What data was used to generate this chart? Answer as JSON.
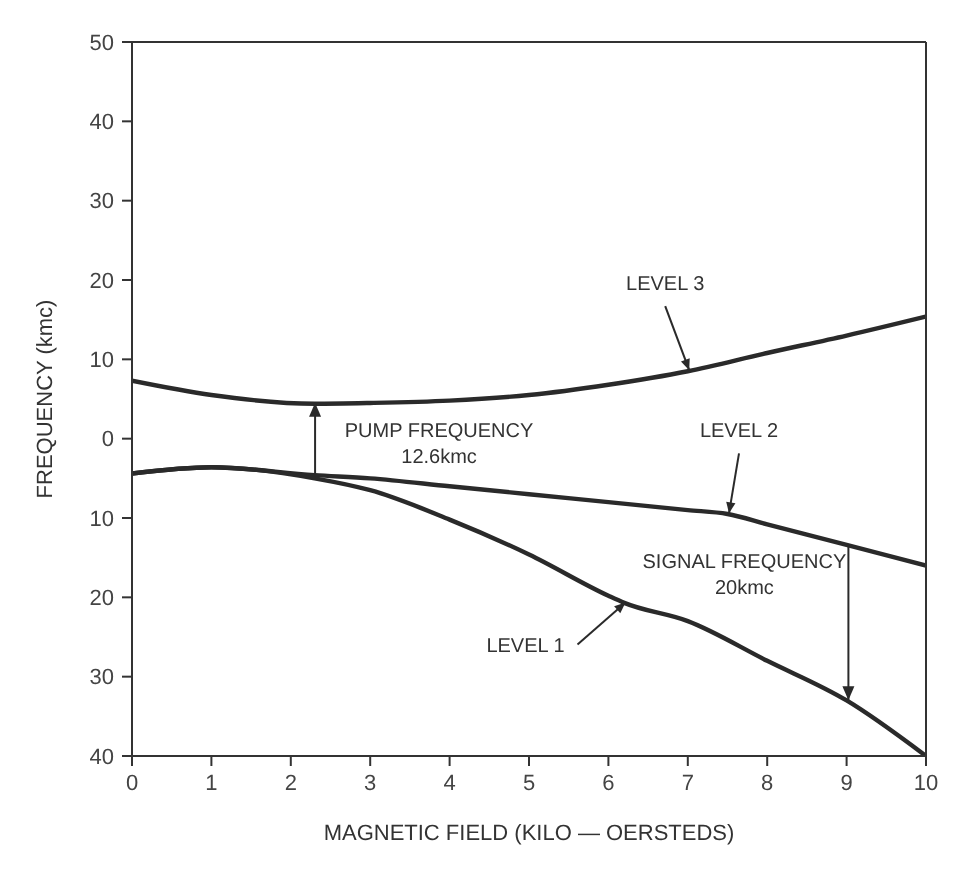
{
  "chart_data": {
    "type": "line",
    "xlabel": "MAGNETIC FIELD (KILO — OERSTEDS)",
    "ylabel": "FREQUENCY (kmc)",
    "xlim": [
      0,
      10
    ],
    "xticks": [
      0,
      1,
      2,
      3,
      4,
      5,
      6,
      7,
      8,
      9,
      10
    ],
    "ylim": [
      -40,
      50
    ],
    "yticks": [
      {
        "value": -40,
        "label": "40"
      },
      {
        "value": -30,
        "label": "30"
      },
      {
        "value": -20,
        "label": "20"
      },
      {
        "value": -10,
        "label": "10"
      },
      0,
      10,
      20,
      30,
      40,
      50
    ],
    "marker": "none",
    "line_style": "solid",
    "series": [
      {
        "color": "#2a2a2a",
        "x": [
          0,
          1,
          2.3,
          3,
          4,
          5,
          6,
          7,
          8,
          9,
          10
        ],
        "values": [
          7.3,
          5.5,
          4.4,
          4.5,
          4.8,
          5.5,
          6.8,
          8.5,
          10.8,
          13,
          15.4
        ]
      },
      {
        "color": "#2a2a2a",
        "x": [
          0,
          1,
          2.3,
          3,
          4,
          5,
          6,
          7,
          7.5,
          8,
          9,
          10
        ],
        "values": [
          -4.4,
          -3.6,
          -4.6,
          -5,
          -6,
          -7,
          -8,
          -9,
          -9.5,
          -10.8,
          -13.4,
          -16
        ]
      },
      {
        "color": "#2a2a2a",
        "x": [
          0,
          1,
          2.3,
          3,
          4,
          5,
          6,
          6.2,
          7,
          8,
          9,
          10
        ],
        "values": [
          -4.4,
          -3.6,
          -5,
          -6.5,
          -10.2,
          -14.6,
          -19.8,
          -20.7,
          -23,
          -28,
          -33,
          -40
        ]
      }
    ],
    "annotations": [
      {
        "text": "LEVEL 3",
        "x": 7,
        "y": 8.5
      },
      {
        "text": "LEVEL 2",
        "x": 7.5,
        "y": -9.5
      },
      {
        "text": "LEVEL 1",
        "x": 6.2,
        "y": -20.7
      },
      {
        "text": "PUMP FREQUENCY\n12.6kmc",
        "x": 2.3,
        "y": 4.4
      },
      {
        "text": "SIGNAL FREQUENCY\n20kmc",
        "x": 9,
        "y": -33
      }
    ]
  }
}
